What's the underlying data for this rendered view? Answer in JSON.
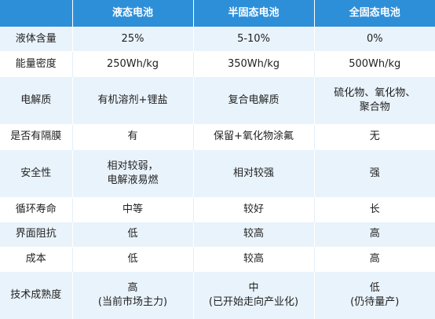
{
  "header": {
    "corner": "",
    "columns": [
      "液态电池",
      "半固态电池",
      "全固态电池"
    ]
  },
  "rows": [
    {
      "label": "液体含量",
      "cells": [
        [
          "25%"
        ],
        [
          "5-10%"
        ],
        [
          "0%"
        ]
      ]
    },
    {
      "label": "能量密度",
      "cells": [
        [
          "250Wh/kg"
        ],
        [
          "350Wh/kg"
        ],
        [
          "500Wh/kg"
        ]
      ]
    },
    {
      "label": "电解质",
      "cells": [
        [
          "有机溶剂+锂盐"
        ],
        [
          "复合电解质"
        ],
        [
          "硫化物、氧化物、",
          "聚合物"
        ]
      ]
    },
    {
      "label": "是否有隔膜",
      "cells": [
        [
          "有"
        ],
        [
          "保留+氧化物涂氟"
        ],
        [
          "无"
        ]
      ]
    },
    {
      "label": "安全性",
      "cells": [
        [
          "相对较弱，",
          "电解液易燃"
        ],
        [
          "相对较强"
        ],
        [
          "强"
        ]
      ]
    },
    {
      "label": "循环寿命",
      "cells": [
        [
          "中等"
        ],
        [
          "较好"
        ],
        [
          "长"
        ]
      ]
    },
    {
      "label": "界面阻抗",
      "cells": [
        [
          "低"
        ],
        [
          "较高"
        ],
        [
          "高"
        ]
      ]
    },
    {
      "label": "成本",
      "cells": [
        [
          "低"
        ],
        [
          "较高"
        ],
        [
          "高"
        ]
      ]
    },
    {
      "label": "技术成熟度",
      "cells": [
        [
          "高",
          "(当前市场主力)"
        ],
        [
          "中",
          "(已开始走向产业化)"
        ],
        [
          "低",
          "(仍待量产)"
        ]
      ]
    }
  ],
  "colors": {
    "header_bg": "#2e8fd9",
    "header_text": "#ffffff",
    "row_stripe": "#e9f3fb",
    "row_plain": "#ffffff",
    "text": "#222222"
  }
}
